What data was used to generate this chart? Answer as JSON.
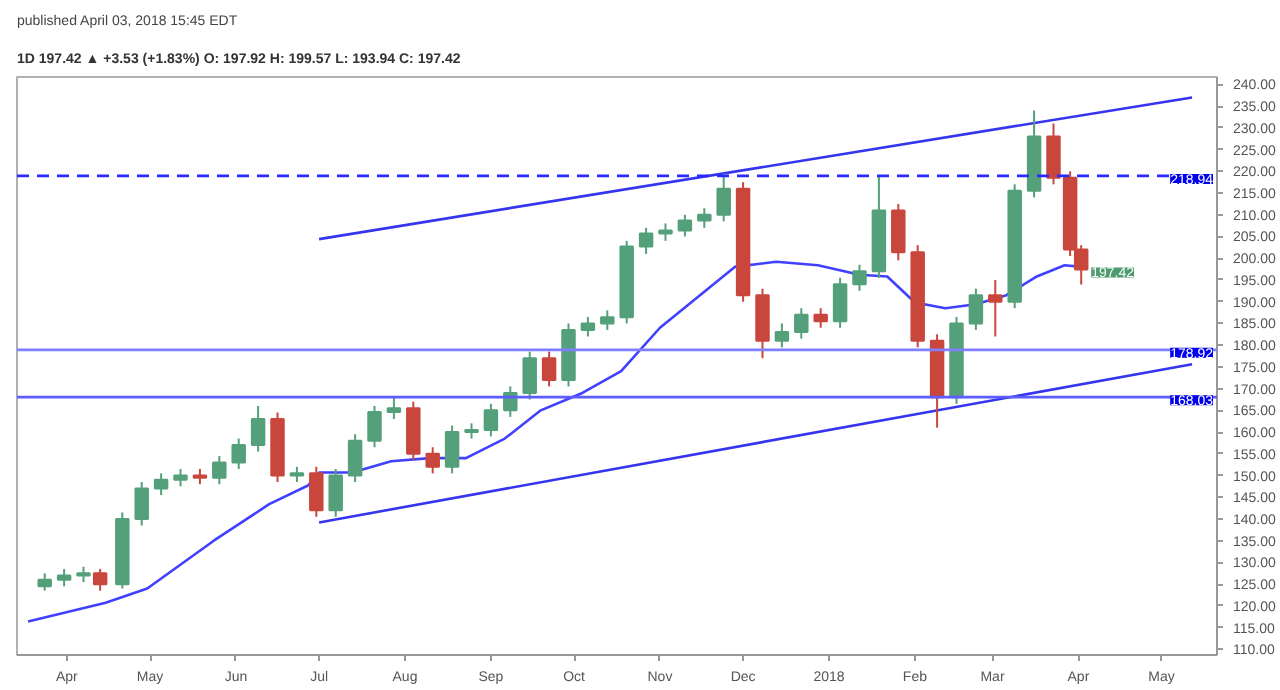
{
  "chart_data": {
    "type": "candlestick",
    "title": "published April 03, 2018 15:45 EDT",
    "subtitle": "1D  197.42 ▲ +3.53 (+1.83%)  O: 197.92  H: 199.57  L: 193.94  C: 197.42",
    "x": [
      "2017-03-24",
      "2017-03-31",
      "2017-04-07",
      "2017-04-13",
      "2017-04-21",
      "2017-04-28",
      "2017-05-05",
      "2017-05-12",
      "2017-05-19",
      "2017-05-26",
      "2017-06-02",
      "2017-06-09",
      "2017-06-16",
      "2017-06-23",
      "2017-06-30",
      "2017-07-07",
      "2017-07-14",
      "2017-07-21",
      "2017-07-28",
      "2017-08-04",
      "2017-08-11",
      "2017-08-18",
      "2017-08-25",
      "2017-09-01",
      "2017-09-08",
      "2017-09-15",
      "2017-09-22",
      "2017-09-29",
      "2017-10-06",
      "2017-10-13",
      "2017-10-20",
      "2017-10-27",
      "2017-11-03",
      "2017-11-10",
      "2017-11-17",
      "2017-11-24",
      "2017-12-01",
      "2017-12-08",
      "2017-12-15",
      "2017-12-22",
      "2017-12-29",
      "2018-01-05",
      "2018-01-12",
      "2018-01-19",
      "2018-01-26",
      "2018-02-02",
      "2018-02-09",
      "2018-02-16",
      "2018-02-23",
      "2018-03-02",
      "2018-03-09",
      "2018-03-16",
      "2018-03-23",
      "2018-03-29",
      "2018-04-02"
    ],
    "ohlc": [
      [
        124.5,
        127.5,
        123.5,
        126
      ],
      [
        126,
        128.5,
        124.5,
        127
      ],
      [
        127,
        129,
        125.5,
        127.5
      ],
      [
        127.5,
        128.5,
        123.5,
        125
      ],
      [
        125,
        141.5,
        124,
        140
      ],
      [
        140,
        148.5,
        138.5,
        147
      ],
      [
        147,
        150.5,
        145.5,
        149
      ],
      [
        149,
        151.5,
        147.5,
        150
      ],
      [
        150,
        151.5,
        148,
        149.5
      ],
      [
        149.5,
        154.5,
        148,
        153
      ],
      [
        153,
        158.5,
        151.5,
        157
      ],
      [
        157,
        166,
        155.5,
        163
      ],
      [
        163,
        164.5,
        148.5,
        150
      ],
      [
        150,
        152,
        148.5,
        150.5
      ],
      [
        150.5,
        152,
        140.5,
        142
      ],
      [
        142,
        151.5,
        140.5,
        150
      ],
      [
        150,
        159.5,
        148.5,
        158
      ],
      [
        158,
        166,
        156.5,
        164.6
      ],
      [
        164.6,
        168,
        163,
        165.5
      ],
      [
        165.5,
        167,
        153.5,
        155
      ],
      [
        155,
        156.5,
        150.5,
        152
      ],
      [
        152,
        161.5,
        150.5,
        160
      ],
      [
        160,
        162,
        158.5,
        160.5
      ],
      [
        160.5,
        166.5,
        159,
        165
      ],
      [
        165,
        170.5,
        163.5,
        169
      ],
      [
        169,
        178.5,
        167.5,
        177
      ],
      [
        177,
        178.5,
        170.5,
        172
      ],
      [
        172,
        185,
        170.5,
        183.5
      ],
      [
        183.5,
        186.5,
        182,
        185
      ],
      [
        185,
        188,
        183.5,
        186.4
      ],
      [
        186.4,
        204,
        185,
        202.7
      ],
      [
        202.7,
        207,
        201,
        205.7
      ],
      [
        205.7,
        208,
        204,
        206.4
      ],
      [
        206.4,
        210,
        205,
        208.7
      ],
      [
        208.7,
        211.5,
        207,
        210
      ],
      [
        210,
        219.5,
        208.5,
        216
      ],
      [
        216,
        217.5,
        190,
        191.5
      ],
      [
        191.5,
        193,
        177,
        181
      ],
      [
        181,
        185,
        179.5,
        183
      ],
      [
        183,
        188.5,
        181.5,
        187
      ],
      [
        187,
        188.5,
        184,
        185.5
      ],
      [
        185.5,
        195.5,
        184,
        194
      ],
      [
        194,
        198.5,
        192.5,
        197
      ],
      [
        197,
        219,
        195.5,
        211
      ],
      [
        211,
        212.5,
        199.5,
        201.4
      ],
      [
        201.4,
        203,
        179.5,
        181
      ],
      [
        181,
        182.5,
        161,
        168
      ],
      [
        168,
        186.5,
        166.5,
        185
      ],
      [
        185,
        193,
        183.5,
        191.5
      ],
      [
        191.5,
        195,
        182,
        190
      ],
      [
        190,
        217,
        188.5,
        215.5
      ],
      [
        215.5,
        234,
        214,
        228
      ],
      [
        228,
        231,
        217,
        218.5
      ],
      [
        218.5,
        220,
        200.5,
        202
      ],
      [
        202,
        203,
        193.94,
        197.42
      ]
    ],
    "colors": [
      "#53a07a",
      "#53a07a",
      "#53a07a",
      "#c9463d",
      "#53a07a",
      "#53a07a",
      "#53a07a",
      "#53a07a",
      "#c9463d",
      "#53a07a",
      "#53a07a",
      "#53a07a",
      "#c9463d",
      "#53a07a",
      "#c9463d",
      "#53a07a",
      "#53a07a",
      "#53a07a",
      "#53a07a",
      "#c9463d",
      "#c9463d",
      "#53a07a",
      "#53a07a",
      "#53a07a",
      "#53a07a",
      "#53a07a",
      "#c9463d",
      "#53a07a",
      "#53a07a",
      "#53a07a",
      "#53a07a",
      "#53a07a",
      "#53a07a",
      "#53a07a",
      "#53a07a",
      "#53a07a",
      "#c9463d",
      "#c9463d",
      "#53a07a",
      "#53a07a",
      "#c9463d",
      "#53a07a",
      "#53a07a",
      "#53a07a",
      "#c9463d",
      "#c9463d",
      "#c9463d",
      "#53a07a",
      "#53a07a",
      "#c9463d",
      "#53a07a",
      "#53a07a",
      "#c9463d",
      "#c9463d",
      "#c9463d"
    ],
    "series": [
      {
        "type": "line",
        "color": "#4040ff",
        "x": [
          "2017-03-18",
          "2017-04-15",
          "2017-04-30",
          "2017-05-24",
          "2017-06-13",
          "2017-06-27",
          "2017-07-01",
          "2017-07-13",
          "2017-07-27",
          "2017-08-10",
          "2017-08-23",
          "2017-09-06",
          "2017-09-19",
          "2017-10-04",
          "2017-10-18",
          "2017-11-01",
          "2017-11-28",
          "2017-12-13",
          "2017-12-28",
          "2018-01-12",
          "2018-01-22",
          "2018-02-01",
          "2018-02-12",
          "2018-02-23",
          "2018-03-06",
          "2018-03-17",
          "2018-03-27",
          "2018-04-02"
        ],
        "values": [
          116.4,
          120.7,
          124,
          135,
          143.4,
          147.7,
          150.7,
          150.7,
          153.3,
          154,
          154,
          158.5,
          165,
          169,
          174,
          184,
          198,
          199.2,
          198.4,
          196.2,
          195.8,
          189.8,
          188.5,
          189.4,
          191.5,
          195.8,
          198.4,
          198
        ]
      },
      {
        "type": "line",
        "color": "#3535f0",
        "x": [
          "2017-07-01",
          "2018-05-12"
        ],
        "values": [
          204.4,
          237
        ]
      },
      {
        "type": "line",
        "color": "#3535f0",
        "x": [
          "2017-07-01",
          "2018-05-12"
        ],
        "values": [
          139.2,
          175.6
        ]
      }
    ],
    "ref_lines": [
      {
        "axis": "y",
        "value": 218.94,
        "label": "218.94",
        "color": "#2a2aff",
        "line_style": "dashed"
      },
      {
        "axis": "y",
        "value": 178.92,
        "label": "178.92",
        "color": "#7f7fff",
        "line_style": "solid"
      },
      {
        "axis": "y",
        "value": 168.03,
        "label": "168.03",
        "color": "#5c5cff",
        "line_style": "solid"
      }
    ],
    "annotations": [
      {
        "text": "197.42",
        "x": "2018-04-02",
        "y": 197.42
      }
    ],
    "xlim": [
      "2017-03-14",
      "2018-05-21"
    ],
    "ylim": [
      108.7,
      241.7
    ],
    "xticks": [
      {
        "value": "2017-04-01",
        "label": "Apr"
      },
      {
        "value": "2017-05-01",
        "label": "May"
      },
      {
        "value": "2017-06-01",
        "label": "Jun"
      },
      {
        "value": "2017-07-01",
        "label": "Jul"
      },
      {
        "value": "2017-08-01",
        "label": "Aug"
      },
      {
        "value": "2017-09-01",
        "label": "Sep"
      },
      {
        "value": "2017-10-01",
        "label": "Oct"
      },
      {
        "value": "2017-11-01",
        "label": "Nov"
      },
      {
        "value": "2017-12-01",
        "label": "Dec"
      },
      {
        "value": "2018-01-01",
        "label": "2018"
      },
      {
        "value": "2018-02-01",
        "label": "Feb"
      },
      {
        "value": "2018-03-01",
        "label": "Mar"
      },
      {
        "value": "2018-04-01",
        "label": "Apr"
      },
      {
        "value": "2018-05-01",
        "label": "May"
      }
    ],
    "yticks": [
      {
        "value": 110,
        "label": "110.00"
      },
      {
        "value": 115,
        "label": "115.00"
      },
      {
        "value": 120,
        "label": "120.00"
      },
      {
        "value": 125,
        "label": "125.00"
      },
      {
        "value": 130,
        "label": "130.00"
      },
      {
        "value": 135,
        "label": "135.00"
      },
      {
        "value": 140,
        "label": "140.00"
      },
      {
        "value": 145,
        "label": "145.00"
      },
      {
        "value": 150,
        "label": "150.00"
      },
      {
        "value": 155,
        "label": "155.00"
      },
      {
        "value": 160,
        "label": "160.00"
      },
      {
        "value": 165,
        "label": "165.00"
      },
      {
        "value": 170,
        "label": "170.00"
      },
      {
        "value": 175,
        "label": "175.00"
      },
      {
        "value": 180,
        "label": "180.00"
      },
      {
        "value": 185,
        "label": "185.00"
      },
      {
        "value": 190,
        "label": "190.00"
      },
      {
        "value": 195,
        "label": "195.00"
      },
      {
        "value": 200,
        "label": "200.00"
      },
      {
        "value": 205,
        "label": "205.00"
      },
      {
        "value": 210,
        "label": "210.00"
      },
      {
        "value": 215,
        "label": "215.00"
      },
      {
        "value": 220,
        "label": "220.00"
      },
      {
        "value": 225,
        "label": "225.00"
      },
      {
        "value": 230,
        "label": "230.00"
      },
      {
        "value": 235,
        "label": "235.00"
      },
      {
        "value": 240,
        "label": "240.00"
      }
    ]
  }
}
